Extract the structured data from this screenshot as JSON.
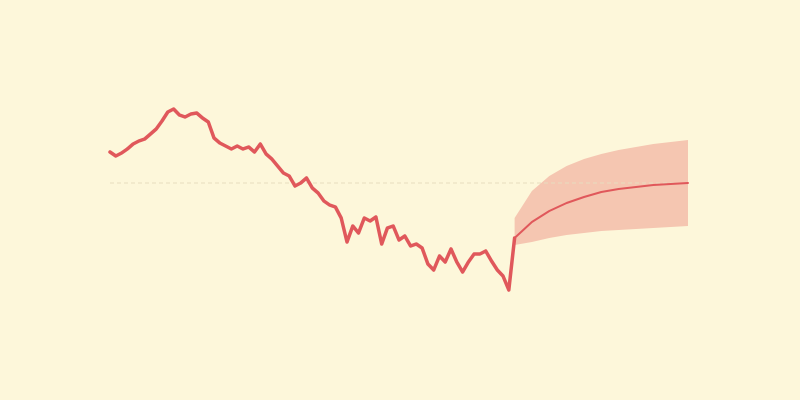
{
  "chart_data": {
    "type": "line",
    "xlim": [
      0,
      100
    ],
    "ylim": [
      -20,
      20
    ],
    "hline": 0,
    "hline_color": "#e8dcbf",
    "series": [
      {
        "color": "#e0585b",
        "x": [
          0,
          1,
          2,
          3,
          4,
          5,
          6,
          7,
          8,
          9,
          10,
          11,
          12,
          13,
          14,
          15,
          16,
          17,
          18,
          19,
          20,
          21,
          22,
          23,
          24,
          25,
          26,
          27,
          28,
          29,
          30,
          31,
          32,
          33,
          34,
          35,
          36,
          37,
          38,
          39,
          40,
          41,
          42,
          43,
          44,
          45,
          46,
          47,
          48,
          49,
          50,
          51,
          52,
          53,
          54,
          55,
          56,
          57,
          58,
          59,
          60,
          61,
          62,
          63,
          64,
          65,
          66,
          67,
          68,
          69,
          70
        ],
        "values": [
          3.1,
          2.7,
          3.0,
          3.4,
          3.9,
          4.2,
          4.4,
          4.9,
          5.4,
          6.2,
          7.1,
          7.4,
          6.8,
          6.6,
          6.9,
          7.0,
          6.5,
          6.1,
          4.5,
          4.0,
          3.7,
          3.4,
          3.7,
          3.4,
          3.6,
          3.1,
          3.9,
          2.9,
          2.4,
          1.7,
          1.0,
          0.7,
          -0.3,
          0,
          0.5,
          -0.5,
          -1.0,
          -1.8,
          -2.2,
          -2.4,
          -3.5,
          -5.9,
          -4.3,
          -5.0,
          -3.5,
          -3.8,
          -3.4,
          -6.1,
          -4.5,
          -4.3,
          -5.7,
          -5.3,
          -6.3,
          -6.1,
          -6.5,
          -8.1,
          -8.7,
          -7.3,
          -7.9,
          -6.6,
          -7.9,
          -8.9,
          -7.9,
          -7.1,
          -7.1,
          -6.8,
          -7.8,
          -8.7,
          -9.3,
          -10.7,
          -5.5
        ]
      },
      {
        "color": "#e0585b",
        "band_color": "#f5c6b1",
        "x": [
          70,
          73,
          76,
          79,
          82,
          85,
          88,
          91,
          94,
          97,
          100
        ],
        "values": [
          -5.5,
          -3.9,
          -2.8,
          -2.0,
          -1.4,
          -0.9,
          -0.6,
          -0.4,
          -0.2,
          -0.1,
          0
        ],
        "upper": [
          -3.5,
          -0.8,
          0.7,
          1.7,
          2.4,
          2.9,
          3.3,
          3.6,
          3.9,
          4.1,
          4.3
        ],
        "lower": [
          -6.2,
          -5.9,
          -5.5,
          -5.2,
          -5.0,
          -4.8,
          -4.7,
          -4.6,
          -4.5,
          -4.4,
          -4.3
        ]
      }
    ]
  }
}
